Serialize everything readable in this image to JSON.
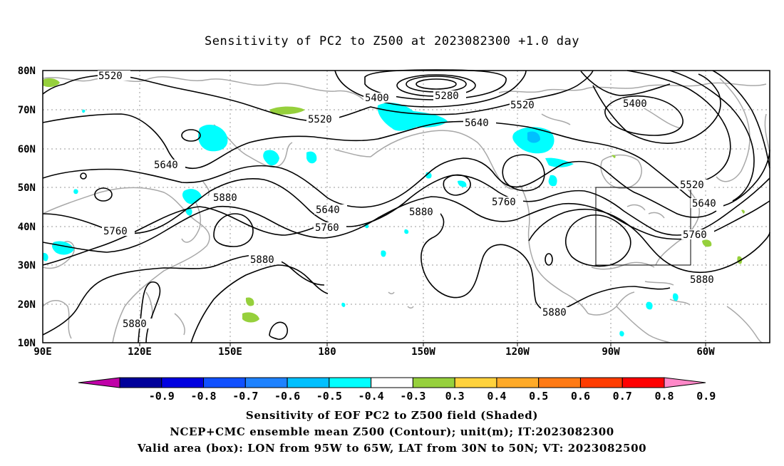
{
  "title": "Sensitivity of PC2 to Z500 at 2023082300 +1.0 day",
  "map": {
    "lat_labels": [
      "80N",
      "70N",
      "60N",
      "50N",
      "40N",
      "30N",
      "20N",
      "10N"
    ],
    "lon_labels": [
      "90E",
      "120E",
      "150E",
      "180",
      "150W",
      "120W",
      "90W",
      "60W"
    ],
    "contour_labels": [
      {
        "text": "5520"
      },
      {
        "text": "5400"
      },
      {
        "text": "5280"
      },
      {
        "text": "5520"
      },
      {
        "text": "5520"
      },
      {
        "text": "5400"
      },
      {
        "text": "5640"
      },
      {
        "text": "5640"
      },
      {
        "text": "5880"
      },
      {
        "text": "5640"
      },
      {
        "text": "5880"
      },
      {
        "text": "5760"
      },
      {
        "text": "5760"
      },
      {
        "text": "5760"
      },
      {
        "text": "5520"
      },
      {
        "text": "5640"
      },
      {
        "text": "5760"
      },
      {
        "text": "5880"
      },
      {
        "text": "5880"
      },
      {
        "text": "5880"
      },
      {
        "text": "5880"
      }
    ],
    "valid_box": {
      "lon_from": "95W",
      "lon_to": "65W",
      "lat_from": "30N",
      "lat_to": "50N"
    }
  },
  "colorbar": {
    "labels": [
      "-0.9",
      "-0.8",
      "-0.7",
      "-0.6",
      "-0.5",
      "-0.4",
      "-0.3",
      "0.3",
      "0.4",
      "0.5",
      "0.6",
      "0.7",
      "0.8",
      "0.9"
    ],
    "colors": [
      "#c000a8",
      "#00009a",
      "#0000e0",
      "#1050ff",
      "#1e82ff",
      "#00c0ff",
      "#00ffff",
      "#ffffff",
      "#96d03c",
      "#ffd23c",
      "#ffaa28",
      "#ff7a14",
      "#ff3c00",
      "#ff0000",
      "#ff88c8"
    ]
  },
  "captions": {
    "line1": "Sensitivity of EOF PC2 to Z500 field (Shaded)",
    "line2": "NCEP+CMC ensemble mean Z500 (Contour); unit(m); IT:2023082300",
    "line3": "Valid area (box): LON from 95W to 65W, LAT from 30N to 50N; VT: 2023082500"
  }
}
